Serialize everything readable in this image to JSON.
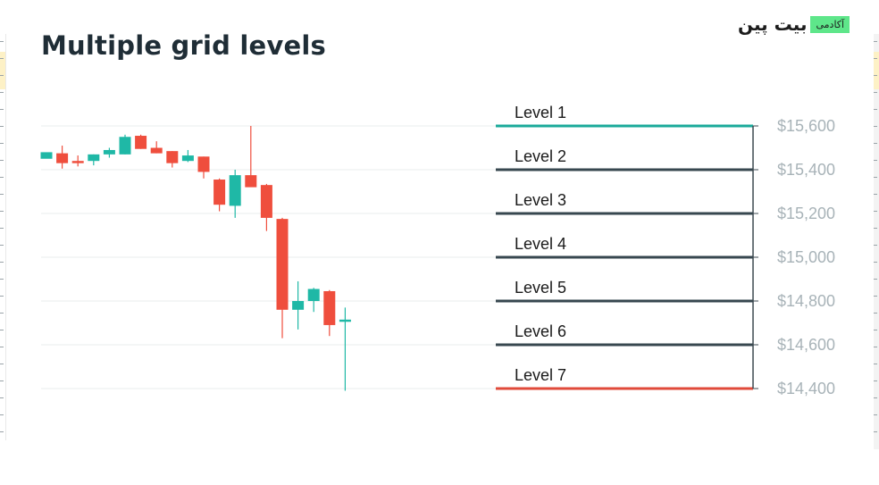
{
  "logo": {
    "name": "بیت پین",
    "badge": "آکادمی"
  },
  "chart_data": {
    "type": "candlestick",
    "title": "Multiple grid levels",
    "y_ticks": [
      "$15,600",
      "$15,400",
      "$15,200",
      "$15,000",
      "$14,800",
      "$14,600",
      "$14,400"
    ],
    "levels": [
      {
        "label": "Level 1",
        "price": 15600,
        "color": "#1aa99a"
      },
      {
        "label": "Level 2",
        "price": 15400,
        "color": "#37474f"
      },
      {
        "label": "Level 3",
        "price": 15200,
        "color": "#37474f"
      },
      {
        "label": "Level 4",
        "price": 15000,
        "color": "#37474f"
      },
      {
        "label": "Level 5",
        "price": 14800,
        "color": "#37474f"
      },
      {
        "label": "Level 6",
        "price": 14600,
        "color": "#37474f"
      },
      {
        "label": "Level 7",
        "price": 14400,
        "color": "#e04a3a"
      }
    ],
    "up_color": "#1fb8a6",
    "down_color": "#ef4e3d",
    "candles": [
      {
        "o": 15450,
        "h": 15475,
        "l": 15455,
        "c": 15480
      },
      {
        "o": 15475,
        "h": 15510,
        "l": 15405,
        "c": 15430
      },
      {
        "o": 15440,
        "h": 15465,
        "l": 15415,
        "c": 15430
      },
      {
        "o": 15440,
        "h": 15470,
        "l": 15420,
        "c": 15470
      },
      {
        "o": 15470,
        "h": 15500,
        "l": 15455,
        "c": 15490
      },
      {
        "o": 15470,
        "h": 15560,
        "l": 15470,
        "c": 15550
      },
      {
        "o": 15555,
        "h": 15560,
        "l": 15495,
        "c": 15495
      },
      {
        "o": 15500,
        "h": 15530,
        "l": 15475,
        "c": 15475
      },
      {
        "o": 15485,
        "h": 15485,
        "l": 15410,
        "c": 15430
      },
      {
        "o": 15440,
        "h": 15490,
        "l": 15435,
        "c": 15465
      },
      {
        "o": 15460,
        "h": 15460,
        "l": 15360,
        "c": 15390
      },
      {
        "o": 15355,
        "h": 15360,
        "l": 15210,
        "c": 15240
      },
      {
        "o": 15235,
        "h": 15400,
        "l": 15180,
        "c": 15375
      },
      {
        "o": 15375,
        "h": 15600,
        "l": 15330,
        "c": 15320
      },
      {
        "o": 15330,
        "h": 15335,
        "l": 15120,
        "c": 15180
      },
      {
        "o": 15175,
        "h": 15180,
        "l": 14630,
        "c": 14760
      },
      {
        "o": 14760,
        "h": 14890,
        "l": 14670,
        "c": 14800
      },
      {
        "o": 14800,
        "h": 14860,
        "l": 14750,
        "c": 14855
      },
      {
        "o": 14845,
        "h": 14850,
        "l": 14640,
        "c": 14690
      },
      {
        "o": 14705,
        "h": 14770,
        "l": 14390,
        "c": 14715
      }
    ],
    "ylim": [
      14400,
      15600
    ],
    "grid": true
  }
}
